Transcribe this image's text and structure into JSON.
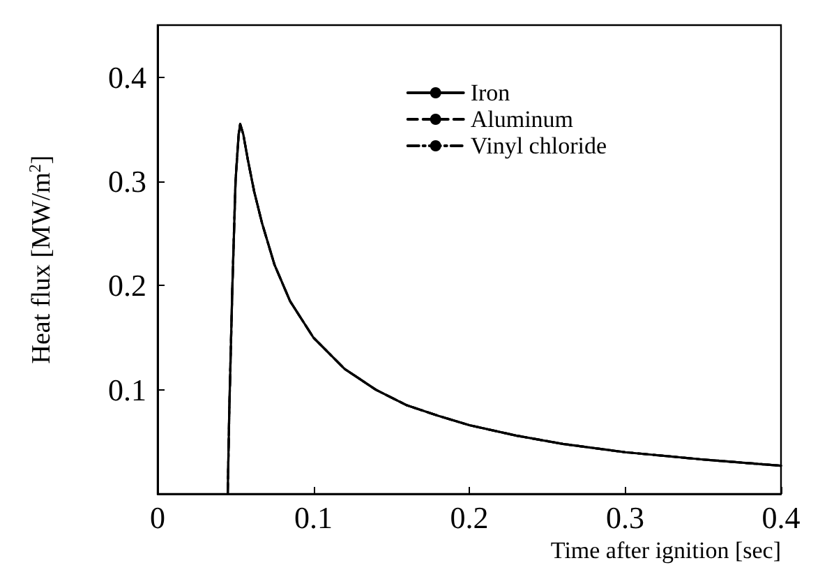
{
  "chart_data": {
    "type": "line",
    "xlabel": "Time after ignition [sec]",
    "ylabel": "Heat flux [MW/m$^{2}$]",
    "x": [
      0.045,
      0.046,
      0.048,
      0.05,
      0.052,
      0.053,
      0.055,
      0.058,
      0.062,
      0.067,
      0.075,
      0.085,
      0.1,
      0.12,
      0.14,
      0.16,
      0.18,
      0.2,
      0.23,
      0.26,
      0.3,
      0.35,
      0.4
    ],
    "series": [
      {
        "name": "Iron",
        "color": "#000000",
        "line_style": "solid",
        "values": [
          0,
          0.08,
          0.2,
          0.3,
          0.345,
          0.355,
          0.345,
          0.32,
          0.29,
          0.26,
          0.22,
          0.185,
          0.15,
          0.12,
          0.1,
          0.085,
          0.075,
          0.066,
          0.056,
          0.048,
          0.04,
          0.033,
          0.027
        ]
      },
      {
        "name": "Aluminum",
        "color": "#000000",
        "line_style": "dashed",
        "values": [
          0,
          0.08,
          0.2,
          0.3,
          0.345,
          0.355,
          0.345,
          0.32,
          0.29,
          0.26,
          0.22,
          0.185,
          0.15,
          0.12,
          0.1,
          0.085,
          0.075,
          0.066,
          0.056,
          0.048,
          0.04,
          0.033,
          0.027
        ]
      },
      {
        "name": "Vinyl chloride",
        "color": "#000000",
        "line_style": "dotted",
        "values": [
          0,
          0.08,
          0.2,
          0.3,
          0.345,
          0.355,
          0.345,
          0.32,
          0.29,
          0.26,
          0.22,
          0.185,
          0.15,
          0.12,
          0.1,
          0.085,
          0.075,
          0.066,
          0.056,
          0.048,
          0.04,
          0.033,
          0.027
        ]
      }
    ],
    "xlim": [
      0,
      0.4
    ],
    "xticks": [
      0,
      0.1,
      0.2,
      0.3,
      0.4
    ],
    "ylim": [
      0,
      0.45
    ],
    "yticks": [
      0.1,
      0.2,
      0.3,
      0.4
    ],
    "grid": false,
    "legend": "top right",
    "marker": "none"
  }
}
